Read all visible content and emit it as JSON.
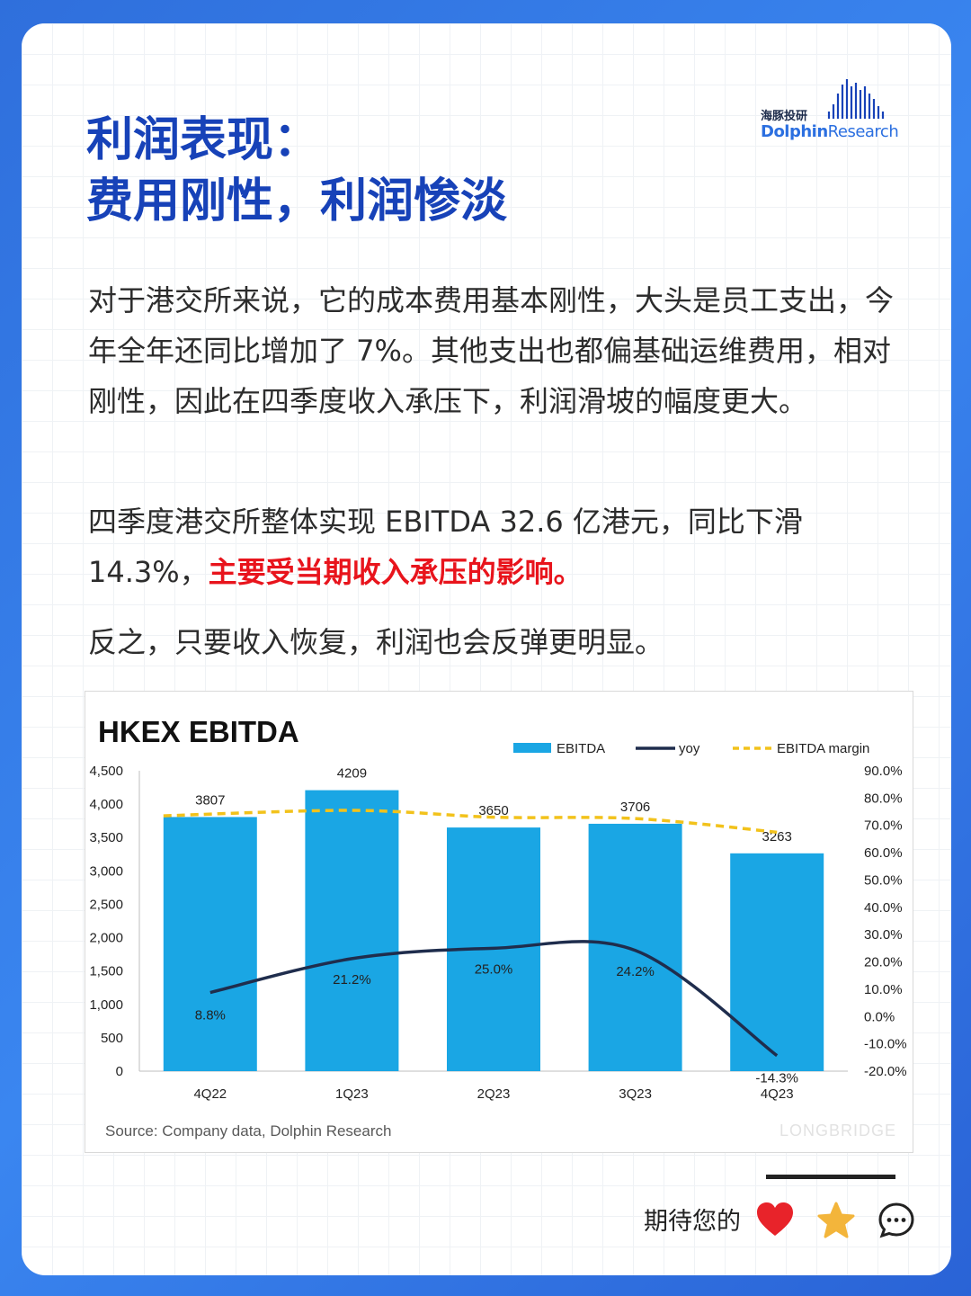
{
  "brand": {
    "cn": "海豚投研",
    "en_bold": "Dolphin",
    "en_regular": "Research"
  },
  "title": {
    "line1": "利润表现：",
    "line2": "费用刚性，利润惨淡"
  },
  "paragraphs": {
    "p1": "对于港交所来说，它的成本费用基本刚性，大头是员工支出，今年全年还同比增加了 7%。其他支出也都偏基础运维费用，相对刚性，因此在四季度收入承压下，利润滑坡的幅度更大。",
    "p2_plain": "四季度港交所整体实现 EBITDA 32.6 亿港元，同比下滑 14.3%，",
    "p2_highlight": "主要受当期收入承压的影响。",
    "p3": "反之，只要收入恢复，利润也会反弹更明显。"
  },
  "footer": {
    "text": "期待您的"
  },
  "icons": [
    "heart-icon",
    "star-icon",
    "comment-icon"
  ],
  "colors": {
    "title": "#1742b8",
    "highlight": "#e8141c",
    "bar": "#1aa6e4",
    "yoy": "#1f2d4d",
    "margin": "#f2c21b"
  },
  "chart_data": {
    "type": "bar",
    "title": "HKEX EBITDA",
    "categories": [
      "4Q22",
      "1Q23",
      "2Q23",
      "3Q23",
      "4Q23"
    ],
    "series": [
      {
        "name": "EBITDA",
        "type": "bar",
        "axis": "left",
        "values": [
          3807,
          4209,
          3650,
          3706,
          3263
        ],
        "labels": [
          "3807",
          "4209",
          "3650",
          "3706",
          "3263"
        ]
      },
      {
        "name": "yoy",
        "type": "line",
        "axis": "right",
        "values": [
          8.8,
          21.2,
          25.0,
          24.2,
          -14.3
        ],
        "labels": [
          "8.8%",
          "21.2%",
          "25.0%",
          "24.2%",
          "-14.3%"
        ]
      },
      {
        "name": "EBITDA margin",
        "type": "line",
        "style": "dashed",
        "axis": "right",
        "values": [
          73.5,
          75.5,
          73.0,
          72.5,
          67.5
        ]
      }
    ],
    "y_left": {
      "min": 0,
      "max": 4500,
      "ticks": [
        "0",
        "500",
        "1,000",
        "1,500",
        "2,000",
        "2,500",
        "3,000",
        "3,500",
        "4,000",
        "4,500"
      ]
    },
    "y_right": {
      "min": -20,
      "max": 90,
      "ticks": [
        "-20.0%",
        "-10.0%",
        "0.0%",
        "10.0%",
        "20.0%",
        "30.0%",
        "40.0%",
        "50.0%",
        "60.0%",
        "70.0%",
        "80.0%",
        "90.0%"
      ]
    },
    "legend_position": "top-right",
    "grid": false,
    "source": "Source: Company data, Dolphin Research",
    "watermark": "LONGBRIDGE"
  }
}
